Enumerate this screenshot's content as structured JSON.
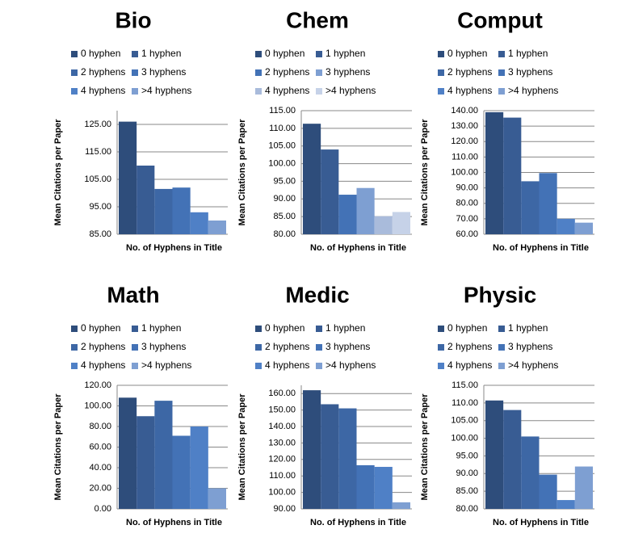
{
  "chart_data": [
    {
      "type": "bar",
      "title": "Bio",
      "x_label": "No. of Hyphens in Title",
      "y_label": "Mean Citations per Paper",
      "categories": [
        null
      ],
      "series": [
        {
          "name": "0 hyphen",
          "color": "#2e4d7b",
          "values": [
            126
          ]
        },
        {
          "name": "1 hyphen",
          "color": "#385c93",
          "values": [
            110
          ]
        },
        {
          "name": "2 hyphens",
          "color": "#3d67a5",
          "values": [
            101.5
          ]
        },
        {
          "name": "3 hyphens",
          "color": "#4372b6",
          "values": [
            102
          ]
        },
        {
          "name": "4 hyphens",
          "color": "#4f80c6",
          "values": [
            93
          ]
        },
        {
          "name": ">4 hyphens",
          "color": "#7e9fd2",
          "values": [
            90
          ]
        }
      ],
      "ylim": [
        85,
        130
      ],
      "yticks": [
        {
          "value": 85,
          "label": "85.00"
        },
        {
          "value": 95,
          "label": "95.00"
        },
        {
          "value": 105,
          "label": "105.00"
        },
        {
          "value": 115,
          "label": "115.00"
        },
        {
          "value": 125,
          "label": "125.00"
        }
      ]
    },
    {
      "type": "bar",
      "title": "Chem",
      "x_label": "No. of Hyphens in Title",
      "y_label": "Mean Citations per Paper",
      "categories": [
        null
      ],
      "series": [
        {
          "name": "0 hyphen",
          "color": "#2e4d7b",
          "values": [
            111.3
          ]
        },
        {
          "name": "1 hyphen",
          "color": "#385c93",
          "values": [
            104
          ]
        },
        {
          "name": "2 hyphens",
          "color": "#4372b6",
          "values": [
            91.2
          ]
        },
        {
          "name": "3 hyphens",
          "color": "#7e9fd2",
          "values": [
            93.1
          ]
        },
        {
          "name": "4 hyphens",
          "color": "#a9bbdb",
          "values": [
            85.1
          ]
        },
        {
          "name": ">4 hyphens",
          "color": "#c6d2e8",
          "values": [
            86.3
          ]
        }
      ],
      "ylim": [
        80,
        115
      ],
      "yticks": [
        {
          "value": 80,
          "label": "80.00"
        },
        {
          "value": 85,
          "label": "85.00"
        },
        {
          "value": 90,
          "label": "90.00"
        },
        {
          "value": 95,
          "label": "95.00"
        },
        {
          "value": 100,
          "label": "100.00"
        },
        {
          "value": 105,
          "label": "105.00"
        },
        {
          "value": 110,
          "label": "110.00"
        },
        {
          "value": 115,
          "label": "115.00"
        }
      ]
    },
    {
      "type": "bar",
      "title": "Comput",
      "x_label": "No. of Hyphens in Title",
      "y_label": "Mean Citations per Paper",
      "categories": [
        null
      ],
      "series": [
        {
          "name": "0 hyphen",
          "color": "#2e4d7b",
          "values": [
            139
          ]
        },
        {
          "name": "1 hyphen",
          "color": "#385c93",
          "values": [
            135.5
          ]
        },
        {
          "name": "2 hyphens",
          "color": "#3d67a5",
          "values": [
            94.3
          ]
        },
        {
          "name": "3 hyphens",
          "color": "#4372b6",
          "values": [
            99.6
          ]
        },
        {
          "name": "4 hyphens",
          "color": "#4f80c6",
          "values": [
            70
          ]
        },
        {
          "name": ">4 hyphens",
          "color": "#7e9fd2",
          "values": [
            67.5
          ]
        }
      ],
      "ylim": [
        60,
        140
      ],
      "yticks": [
        {
          "value": 60,
          "label": "60.00"
        },
        {
          "value": 70,
          "label": "70.00"
        },
        {
          "value": 80,
          "label": "80.00"
        },
        {
          "value": 90,
          "label": "90.00"
        },
        {
          "value": 100,
          "label": "100.00"
        },
        {
          "value": 110,
          "label": "110.00"
        },
        {
          "value": 120,
          "label": "120.00"
        },
        {
          "value": 130,
          "label": "130.00"
        },
        {
          "value": 140,
          "label": "140.00"
        }
      ]
    },
    {
      "type": "bar",
      "title": "Math",
      "x_label": "No. of Hyphens in Title",
      "y_label": "Mean Citations per Paper",
      "categories": [
        null
      ],
      "series": [
        {
          "name": "0 hyphen",
          "color": "#2e4d7b",
          "values": [
            108
          ]
        },
        {
          "name": "1 hyphen",
          "color": "#385c93",
          "values": [
            90
          ]
        },
        {
          "name": "2 hyphens",
          "color": "#3d67a5",
          "values": [
            105
          ]
        },
        {
          "name": "3 hyphens",
          "color": "#4372b6",
          "values": [
            71
          ]
        },
        {
          "name": "4 hyphens",
          "color": "#4f80c6",
          "values": [
            80
          ]
        },
        {
          "name": ">4 hyphens",
          "color": "#7e9fd2",
          "values": [
            20
          ]
        }
      ],
      "ylim": [
        0,
        120
      ],
      "yticks": [
        {
          "value": 0,
          "label": "0.00"
        },
        {
          "value": 20,
          "label": "20.00"
        },
        {
          "value": 40,
          "label": "40.00"
        },
        {
          "value": 60,
          "label": "60.00"
        },
        {
          "value": 80,
          "label": "80.00"
        },
        {
          "value": 100,
          "label": "100.00"
        },
        {
          "value": 120,
          "label": "120.00"
        }
      ]
    },
    {
      "type": "bar",
      "title": "Medic",
      "x_label": "No. of Hyphens in Title",
      "y_label": "Mean Citations per Paper",
      "categories": [
        null
      ],
      "series": [
        {
          "name": "0 hyphen",
          "color": "#2e4d7b",
          "values": [
            162
          ]
        },
        {
          "name": "1 hyphen",
          "color": "#385c93",
          "values": [
            153.5
          ]
        },
        {
          "name": "2 hyphens",
          "color": "#3d67a5",
          "values": [
            151
          ]
        },
        {
          "name": "3 hyphens",
          "color": "#4372b6",
          "values": [
            116.5
          ]
        },
        {
          "name": "4 hyphens",
          "color": "#4f80c6",
          "values": [
            115.5
          ]
        },
        {
          "name": ">4 hyphens",
          "color": "#7e9fd2",
          "values": [
            94
          ]
        }
      ],
      "ylim": [
        90,
        165
      ],
      "yticks": [
        {
          "value": 90,
          "label": "90.00"
        },
        {
          "value": 100,
          "label": "100.00"
        },
        {
          "value": 110,
          "label": "110.00"
        },
        {
          "value": 120,
          "label": "120.00"
        },
        {
          "value": 130,
          "label": "130.00"
        },
        {
          "value": 140,
          "label": "140.00"
        },
        {
          "value": 150,
          "label": "150.00"
        },
        {
          "value": 160,
          "label": "160.00"
        }
      ]
    },
    {
      "type": "bar",
      "title": "Physic",
      "x_label": "No. of Hyphens in Title",
      "y_label": "Mean Citations per Paper",
      "categories": [
        null
      ],
      "series": [
        {
          "name": "0 hyphen",
          "color": "#2e4d7b",
          "values": [
            110.7
          ]
        },
        {
          "name": "1 hyphen",
          "color": "#385c93",
          "values": [
            108
          ]
        },
        {
          "name": "2 hyphens",
          "color": "#3d67a5",
          "values": [
            100.5
          ]
        },
        {
          "name": "3 hyphens",
          "color": "#4372b6",
          "values": [
            89.7
          ]
        },
        {
          "name": "4 hyphens",
          "color": "#4f80c6",
          "values": [
            82.5
          ]
        },
        {
          "name": ">4 hyphens",
          "color": "#7e9fd2",
          "values": [
            92
          ]
        }
      ],
      "ylim": [
        80,
        115
      ],
      "yticks": [
        {
          "value": 80,
          "label": "80.00"
        },
        {
          "value": 85,
          "label": "85.00"
        },
        {
          "value": 90,
          "label": "90.00"
        },
        {
          "value": 95,
          "label": "95.00"
        },
        {
          "value": 100,
          "label": "100.00"
        },
        {
          "value": 105,
          "label": "105.00"
        },
        {
          "value": 110,
          "label": "110.00"
        },
        {
          "value": 115,
          "label": "115.00"
        }
      ]
    }
  ]
}
